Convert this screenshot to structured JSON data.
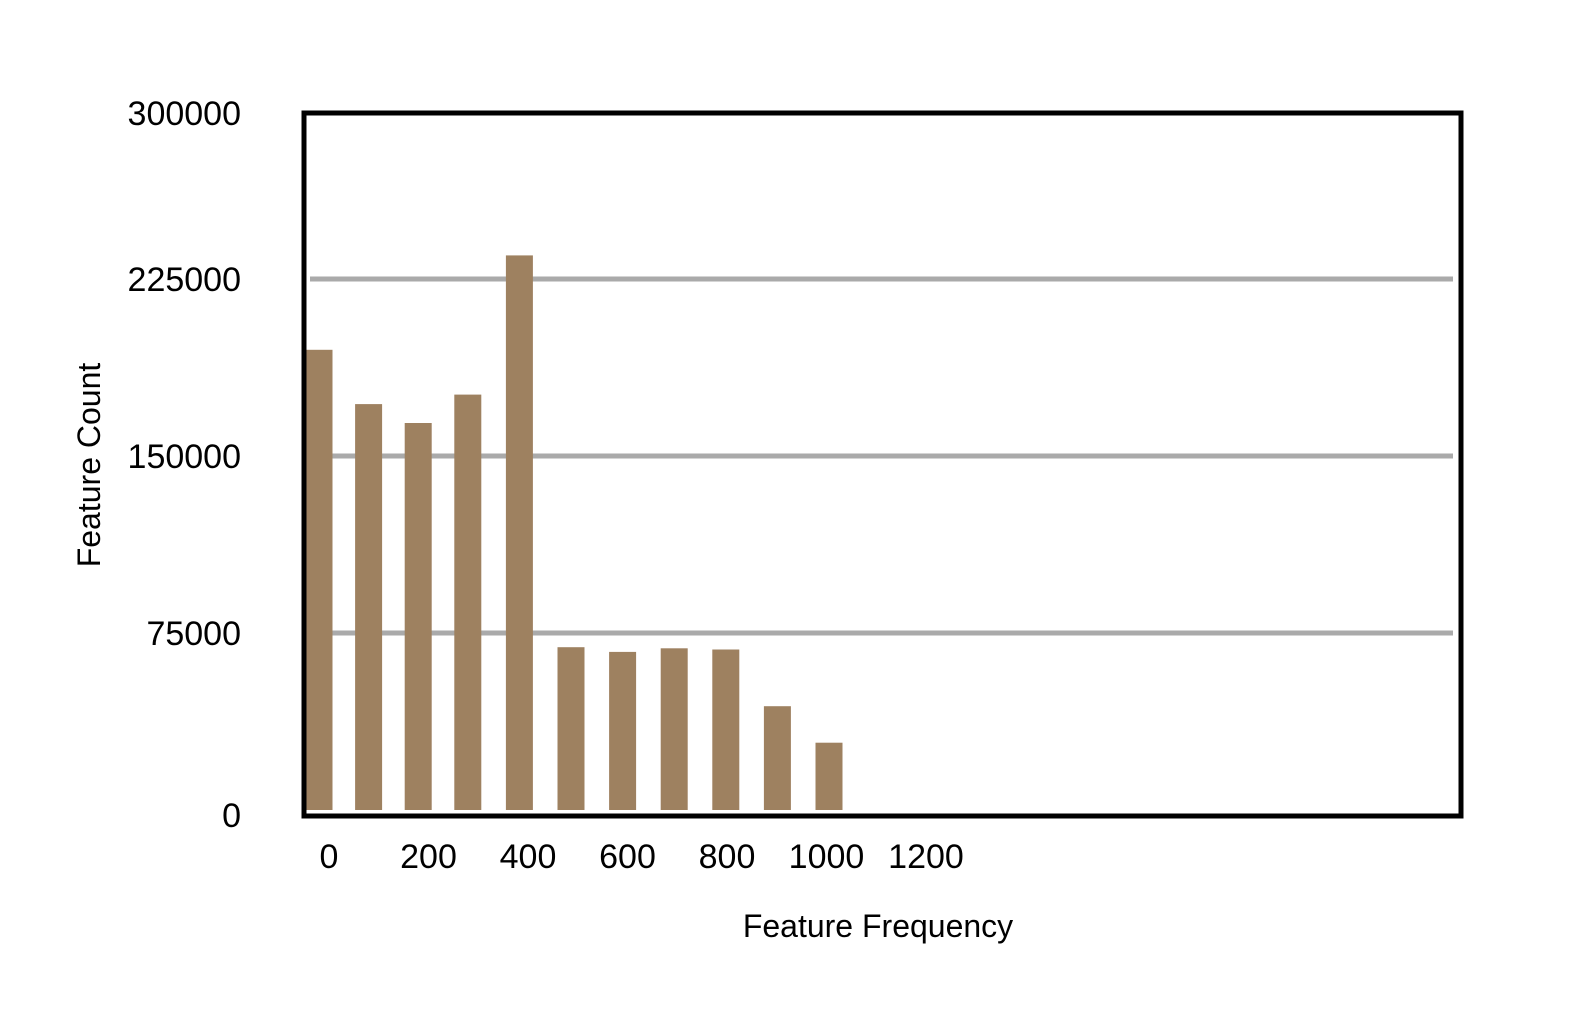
{
  "chart_data": {
    "type": "bar",
    "title": "",
    "xlabel": "Feature Frequency",
    "ylabel": "Feature Count",
    "x": [
      0,
      100,
      200,
      300,
      400,
      500,
      600,
      700,
      800,
      900,
      1000
    ],
    "values": [
      195000,
      172000,
      164000,
      176000,
      235000,
      69000,
      67000,
      68500,
      68000,
      44000,
      28500
    ],
    "ylim": [
      0,
      300000
    ],
    "xlim": [
      0,
      1100
    ],
    "y_ticks": [
      "0",
      "75000",
      "150000",
      "225000",
      "300000"
    ],
    "x_ticks": [
      "0",
      "200",
      "400",
      "600",
      "800",
      "1000",
      "1200"
    ],
    "grid": "horizontal",
    "bar_color": "#9e8160",
    "grid_color": "#aaaaaa",
    "frame_color": "#000000"
  }
}
